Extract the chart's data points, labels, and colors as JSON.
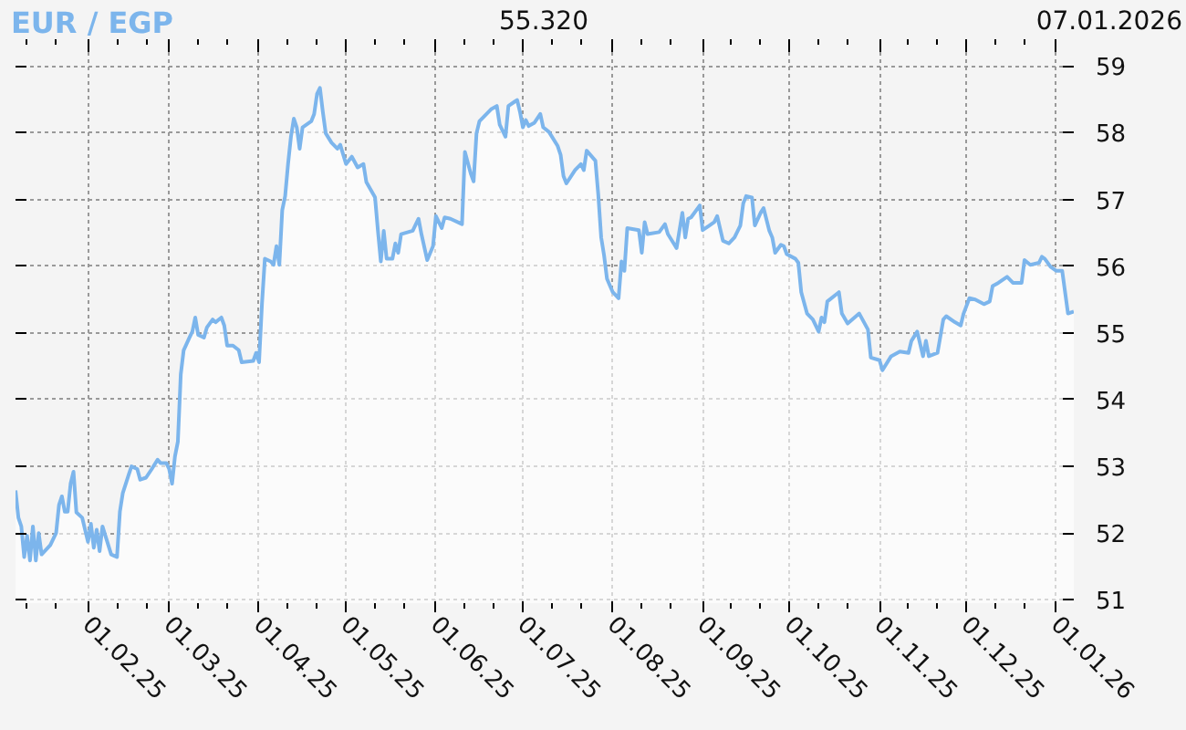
{
  "chart_data": {
    "type": "area",
    "title": "EUR / EGP",
    "annotations": [
      "55.320",
      "07.01.2026"
    ],
    "color": "#7cb5ec",
    "xlim": [
      "2025-01-07",
      "2026-01-07"
    ],
    "ylim": [
      50.95,
      59.4
    ],
    "yticks": [
      51,
      52,
      53,
      54,
      55,
      56,
      57,
      58,
      59
    ],
    "xticks": [
      {
        "value": "2025-01-11",
        "label": null
      },
      {
        "value": "2025-01-21",
        "label": null
      },
      {
        "value": "2025-02-01",
        "label": "01.02.25"
      },
      {
        "value": "2025-02-11",
        "label": null
      },
      {
        "value": "2025-02-21",
        "label": null
      },
      {
        "value": "2025-03-01",
        "label": "01.03.25"
      },
      {
        "value": "2025-03-11",
        "label": null
      },
      {
        "value": "2025-03-21",
        "label": null
      },
      {
        "value": "2025-04-01",
        "label": "01.04.25"
      },
      {
        "value": "2025-04-11",
        "label": null
      },
      {
        "value": "2025-04-21",
        "label": null
      },
      {
        "value": "2025-05-01",
        "label": "01.05.25"
      },
      {
        "value": "2025-05-11",
        "label": null
      },
      {
        "value": "2025-05-21",
        "label": null
      },
      {
        "value": "2025-06-01",
        "label": "01.06.25"
      },
      {
        "value": "2025-06-11",
        "label": null
      },
      {
        "value": "2025-06-21",
        "label": null
      },
      {
        "value": "2025-07-01",
        "label": "01.07.25"
      },
      {
        "value": "2025-07-11",
        "label": null
      },
      {
        "value": "2025-07-21",
        "label": null
      },
      {
        "value": "2025-08-01",
        "label": "01.08.25"
      },
      {
        "value": "2025-08-11",
        "label": null
      },
      {
        "value": "2025-08-21",
        "label": null
      },
      {
        "value": "2025-09-01",
        "label": "01.09.25"
      },
      {
        "value": "2025-09-11",
        "label": null
      },
      {
        "value": "2025-09-21",
        "label": null
      },
      {
        "value": "2025-10-01",
        "label": "01.10.25"
      },
      {
        "value": "2025-10-11",
        "label": null
      },
      {
        "value": "2025-10-21",
        "label": null
      },
      {
        "value": "2025-11-01",
        "label": "01.11.25"
      },
      {
        "value": "2025-11-11",
        "label": null
      },
      {
        "value": "2025-11-21",
        "label": null
      },
      {
        "value": "2025-12-01",
        "label": "01.12.25"
      },
      {
        "value": "2025-12-11",
        "label": null
      },
      {
        "value": "2025-12-21",
        "label": null
      },
      {
        "value": "2026-01-01",
        "label": "01.01.26"
      }
    ],
    "grid": true,
    "x": [
      "2025-01-07",
      "2025-01-08",
      "2025-01-09",
      "2025-01-10",
      "2025-01-11",
      "2025-01-12",
      "2025-01-13",
      "2025-01-14",
      "2025-01-15",
      "2025-01-16",
      "2025-01-19",
      "2025-01-21",
      "2025-01-22",
      "2025-01-23",
      "2025-01-24",
      "2025-01-25",
      "2025-01-26",
      "2025-01-27",
      "2025-01-28",
      "2025-01-30",
      "2025-01-31",
      "2025-02-01",
      "2025-02-02",
      "2025-02-03",
      "2025-02-04",
      "2025-02-05",
      "2025-02-06",
      "2025-02-07",
      "2025-02-09",
      "2025-02-11",
      "2025-02-12",
      "2025-02-13",
      "2025-02-15",
      "2025-02-16",
      "2025-02-18",
      "2025-02-19",
      "2025-02-21",
      "2025-02-23",
      "2025-02-25",
      "2025-02-26",
      "2025-02-28",
      "2025-03-01",
      "2025-03-02",
      "2025-03-03",
      "2025-03-04",
      "2025-03-05",
      "2025-03-06",
      "2025-03-08",
      "2025-03-09",
      "2025-03-10",
      "2025-03-11",
      "2025-03-13",
      "2025-03-14",
      "2025-03-16",
      "2025-03-17",
      "2025-03-19",
      "2025-03-20",
      "2025-03-21",
      "2025-03-23",
      "2025-03-25",
      "2025-03-26",
      "2025-03-30",
      "2025-03-31",
      "2025-04-01",
      "2025-04-02",
      "2025-04-03",
      "2025-04-05",
      "2025-04-06",
      "2025-04-07",
      "2025-04-08",
      "2025-04-09",
      "2025-04-10",
      "2025-04-11",
      "2025-04-12",
      "2025-04-13",
      "2025-04-14",
      "2025-04-15",
      "2025-04-16",
      "2025-04-19",
      "2025-04-20",
      "2025-04-21",
      "2025-04-22",
      "2025-04-23",
      "2025-04-24",
      "2025-04-26",
      "2025-04-28",
      "2025-04-29",
      "2025-05-01",
      "2025-05-03",
      "2025-05-05",
      "2025-05-07",
      "2025-05-08",
      "2025-05-11",
      "2025-05-12",
      "2025-05-13",
      "2025-05-14",
      "2025-05-15",
      "2025-05-17",
      "2025-05-18",
      "2025-05-19",
      "2025-05-20",
      "2025-05-24",
      "2025-05-26",
      "2025-05-27",
      "2025-05-29",
      "2025-05-31",
      "2025-06-01",
      "2025-06-03",
      "2025-06-04",
      "2025-06-06",
      "2025-06-10",
      "2025-06-11",
      "2025-06-13",
      "2025-06-14",
      "2025-06-15",
      "2025-06-16",
      "2025-06-18",
      "2025-06-20",
      "2025-06-22",
      "2025-06-23",
      "2025-06-25",
      "2025-06-26",
      "2025-06-28",
      "2025-06-29",
      "2025-06-30",
      "2025-07-01",
      "2025-07-02",
      "2025-07-03",
      "2025-07-05",
      "2025-07-07",
      "2025-07-08",
      "2025-07-10",
      "2025-07-13",
      "2025-07-14",
      "2025-07-15",
      "2025-07-16",
      "2025-07-19",
      "2025-07-21",
      "2025-07-22",
      "2025-07-23",
      "2025-07-26",
      "2025-07-27",
      "2025-07-28",
      "2025-07-29",
      "2025-07-30",
      "2025-08-01",
      "2025-08-03",
      "2025-08-04",
      "2025-08-05",
      "2025-08-06",
      "2025-08-10",
      "2025-08-11",
      "2025-08-12",
      "2025-08-13",
      "2025-08-17",
      "2025-08-19",
      "2025-08-20",
      "2025-08-22",
      "2025-08-23",
      "2025-08-25",
      "2025-08-26",
      "2025-08-27",
      "2025-08-28",
      "2025-08-31",
      "2025-09-01",
      "2025-09-03",
      "2025-09-05",
      "2025-09-06",
      "2025-09-08",
      "2025-09-10",
      "2025-09-12",
      "2025-09-14",
      "2025-09-15",
      "2025-09-16",
      "2025-09-18",
      "2025-09-19",
      "2025-09-21",
      "2025-09-22",
      "2025-09-24",
      "2025-09-25",
      "2025-09-26",
      "2025-09-28",
      "2025-09-29",
      "2025-09-30",
      "2025-10-03",
      "2025-10-04",
      "2025-10-05",
      "2025-10-07",
      "2025-10-09",
      "2025-10-11",
      "2025-10-12",
      "2025-10-13",
      "2025-10-14",
      "2025-10-18",
      "2025-10-19",
      "2025-10-21",
      "2025-10-25",
      "2025-10-28",
      "2025-10-29",
      "2025-11-01",
      "2025-11-02",
      "2025-11-05",
      "2025-11-08",
      "2025-11-11",
      "2025-11-12",
      "2025-11-14",
      "2025-11-16",
      "2025-11-17",
      "2025-11-18",
      "2025-11-21",
      "2025-11-23",
      "2025-11-24",
      "2025-11-27",
      "2025-11-29",
      "2025-11-30",
      "2025-12-02",
      "2025-12-04",
      "2025-12-07",
      "2025-12-09",
      "2025-12-10",
      "2025-12-12",
      "2025-12-15",
      "2025-12-17",
      "2025-12-20",
      "2025-12-21",
      "2025-12-23",
      "2025-12-26",
      "2025-12-27",
      "2025-12-28",
      "2025-12-30",
      "2026-01-01",
      "2026-01-03",
      "2026-01-05",
      "2026-01-07"
    ],
    "values": [
      52.64,
      52.23,
      52.1,
      51.64,
      51.96,
      51.59,
      52.1,
      51.59,
      52.0,
      51.68,
      51.82,
      52.0,
      52.42,
      52.55,
      52.32,
      52.32,
      52.74,
      52.92,
      52.31,
      52.23,
      52.05,
      51.87,
      52.14,
      51.78,
      52.05,
      51.73,
      52.1,
      51.96,
      51.68,
      51.64,
      52.32,
      52.6,
      52.87,
      53.0,
      52.96,
      52.8,
      52.83,
      52.96,
      53.1,
      53.05,
      53.05,
      52.96,
      52.74,
      53.15,
      53.37,
      54.38,
      54.74,
      54.93,
      55.02,
      55.23,
      54.97,
      54.93,
      55.08,
      55.2,
      55.16,
      55.23,
      55.11,
      54.81,
      54.81,
      54.74,
      54.56,
      54.58,
      54.7,
      54.56,
      55.43,
      56.11,
      56.07,
      56.02,
      56.3,
      56.02,
      56.84,
      57.05,
      57.53,
      57.94,
      58.21,
      58.08,
      57.76,
      58.08,
      58.17,
      58.28,
      58.58,
      58.67,
      58.31,
      57.99,
      57.85,
      57.76,
      57.82,
      57.53,
      57.64,
      57.48,
      57.53,
      57.26,
      57.03,
      56.53,
      56.07,
      56.53,
      56.11,
      56.11,
      56.34,
      56.2,
      56.48,
      56.53,
      56.71,
      56.48,
      56.09,
      56.3,
      56.75,
      56.57,
      56.73,
      56.71,
      56.63,
      57.71,
      57.39,
      57.27,
      57.99,
      58.17,
      58.26,
      58.35,
      58.4,
      58.12,
      57.94,
      58.4,
      58.46,
      58.49,
      58.31,
      58.08,
      58.19,
      58.1,
      58.15,
      58.28,
      58.08,
      58.01,
      57.8,
      57.67,
      57.35,
      57.24,
      57.44,
      57.53,
      57.44,
      57.73,
      57.58,
      57.07,
      56.43,
      56.16,
      55.81,
      55.61,
      55.52,
      56.07,
      55.93,
      56.57,
      56.54,
      56.2,
      56.66,
      56.48,
      56.51,
      56.63,
      56.48,
      56.34,
      56.27,
      56.8,
      56.43,
      56.71,
      56.73,
      56.91,
      56.54,
      56.6,
      56.66,
      56.75,
      56.38,
      56.34,
      56.43,
      56.61,
      56.94,
      57.05,
      57.03,
      56.61,
      56.8,
      56.87,
      56.53,
      56.43,
      56.2,
      56.32,
      56.3,
      56.18,
      56.11,
      56.05,
      55.61,
      55.29,
      55.2,
      55.02,
      55.23,
      55.16,
      55.47,
      55.61,
      55.29,
      55.14,
      55.29,
      55.05,
      54.63,
      54.59,
      54.44,
      54.65,
      54.72,
      54.7,
      54.88,
      55.02,
      54.65,
      54.88,
      54.65,
      54.7,
      55.2,
      55.25,
      55.16,
      55.11,
      55.29,
      55.52,
      55.5,
      55.43,
      55.47,
      55.7,
      55.75,
      55.84,
      55.75,
      55.75,
      56.09,
      56.02,
      56.05,
      56.14,
      56.11,
      55.99,
      55.93,
      55.93,
      55.29,
      55.32
    ]
  }
}
